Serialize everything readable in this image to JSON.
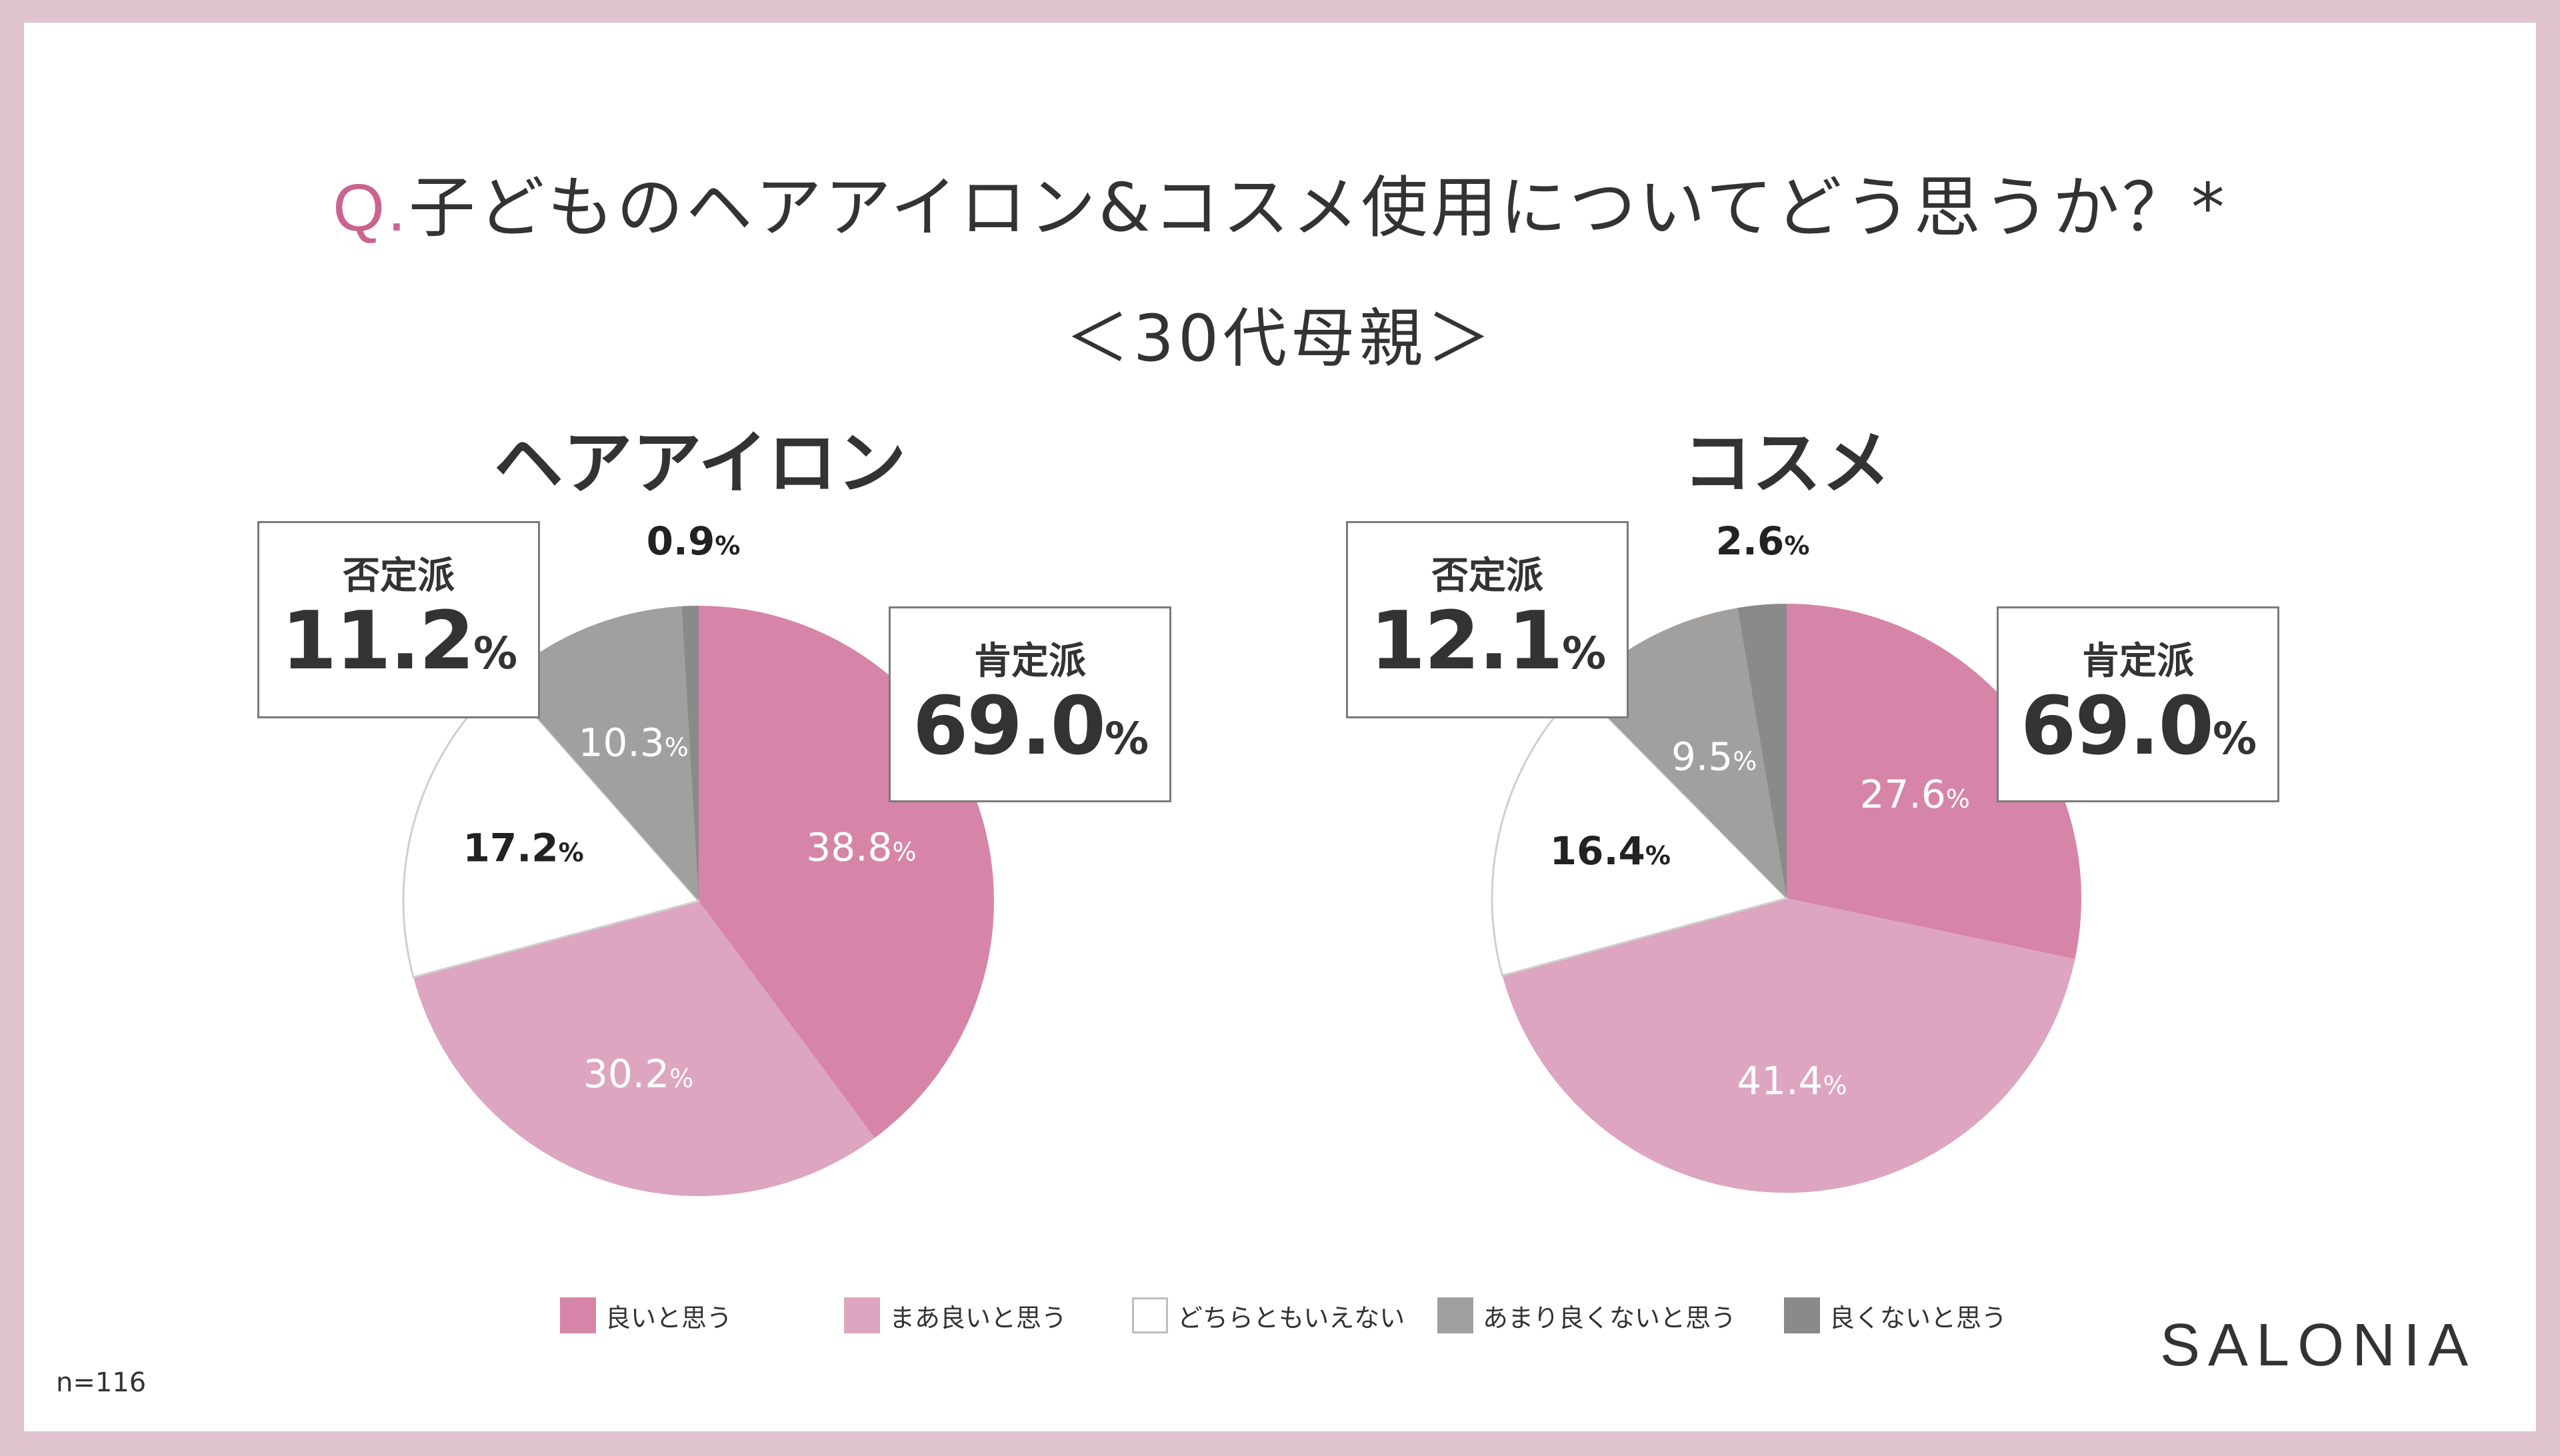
{
  "title": {
    "prefix": "Q.",
    "text": "子どものヘアアイロン&コスメ使用についてどう思うか？*"
  },
  "subtitle": "＜30代母親＞",
  "categories": [
    "良いと思う",
    "まあ良いと思う",
    "どちらともいえない",
    "あまり良くないと思う",
    "良くないと思う"
  ],
  "colors": [
    "#d685a9",
    "#dda5c0",
    "#ffffff",
    "#a1a09e",
    "#8a8a8a"
  ],
  "chart_data": [
    {
      "type": "pie",
      "title": "ヘアアイロン",
      "categories": [
        "良いと思う",
        "まあ良いと思う",
        "どちらともいえない",
        "あまり良くないと思う",
        "良くないと思う"
      ],
      "values": [
        38.8,
        30.2,
        17.2,
        10.3,
        0.9
      ],
      "value_labels": [
        "38.8",
        "30.2",
        "17.2",
        "10.3",
        "0.9"
      ],
      "positive": {
        "label": "肯定派",
        "value": "69.0"
      },
      "negative": {
        "label": "否定派",
        "value": "11.2"
      }
    },
    {
      "type": "pie",
      "title": "コスメ",
      "categories": [
        "良いと思う",
        "まあ良いと思う",
        "どちらともいえない",
        "あまり良くないと思う",
        "良くないと思う"
      ],
      "values": [
        27.6,
        41.4,
        16.4,
        9.5,
        2.6
      ],
      "value_labels": [
        "27.6",
        "41.4",
        "16.4",
        "9.5",
        "2.6"
      ],
      "positive": {
        "label": "肯定派",
        "value": "69.0"
      },
      "negative": {
        "label": "否定派",
        "value": "12.1"
      }
    }
  ],
  "percent_sign": "%",
  "sample_note": "n=116",
  "brand": "SALONIA"
}
